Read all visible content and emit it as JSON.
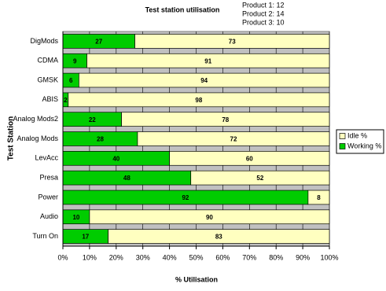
{
  "chart_data": {
    "type": "stacked-barh",
    "title": "Test station utilisation",
    "annotations": [
      "Product 1: 12",
      "Product 2: 14",
      "Product 3: 10"
    ],
    "xlabel": "% Utilisation",
    "ylabel": "Test Station",
    "categories": [
      "DigMods",
      "CDMA",
      "GMSK",
      "ABIS",
      "Analog Mods2",
      "Analog Mods",
      "LevAcc",
      "Presa",
      "Power",
      "Audio",
      "Turn On"
    ],
    "series": [
      {
        "name": "Working %",
        "color": "#00cc00",
        "values": [
          27,
          9,
          6,
          2,
          22,
          28,
          40,
          48,
          92,
          10,
          17
        ]
      },
      {
        "name": "Idle %",
        "color": "#ffffc0",
        "values": [
          73,
          91,
          94,
          98,
          78,
          72,
          60,
          52,
          8,
          90,
          83
        ]
      }
    ],
    "xlim": [
      0,
      100
    ],
    "xticks": [
      {
        "value": 0,
        "label": "0%"
      },
      {
        "value": 10,
        "label": "10%"
      },
      {
        "value": 20,
        "label": "20%"
      },
      {
        "value": 30,
        "label": "30%"
      },
      {
        "value": 40,
        "label": "40%"
      },
      {
        "value": 50,
        "label": "50%"
      },
      {
        "value": 60,
        "label": "60%"
      },
      {
        "value": 70,
        "label": "70%"
      },
      {
        "value": 80,
        "label": "80%"
      },
      {
        "value": 90,
        "label": "90%"
      },
      {
        "value": 100,
        "label": "100%"
      }
    ],
    "grid": true,
    "legend": "right",
    "plot_background": "#c0c0c0"
  }
}
